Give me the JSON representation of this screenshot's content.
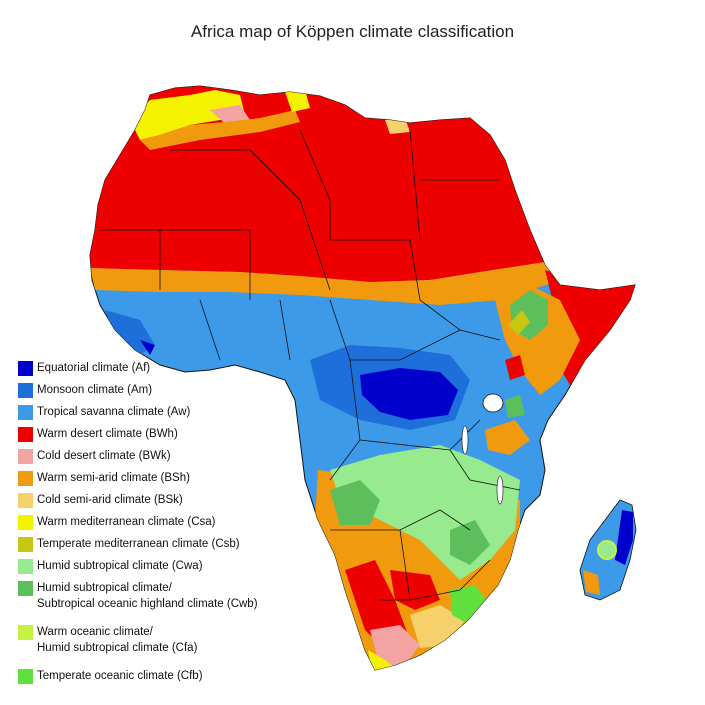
{
  "title": "Africa map of Köppen climate classification",
  "legend": [
    {
      "label": "Equatorial climate (Af)",
      "color": "#0000cd"
    },
    {
      "label": "Monsoon climate (Am)",
      "color": "#1f6fdb"
    },
    {
      "label": "Tropical savanna climate (Aw)",
      "color": "#3c9ae8"
    },
    {
      "label": "Warm desert climate (BWh)",
      "color": "#ee0000"
    },
    {
      "label": "Cold desert climate (BWk)",
      "color": "#f4a3a3"
    },
    {
      "label": "Warm semi-arid climate (BSh)",
      "color": "#f29a0e"
    },
    {
      "label": "Cold semi-arid climate (BSk)",
      "color": "#f6d06a"
    },
    {
      "label": "Warm mediterranean climate (Csa)",
      "color": "#f5f200"
    },
    {
      "label": "Temperate mediterranean climate (Csb)",
      "color": "#c7c712"
    },
    {
      "label": "Humid subtropical climate (Cwa)",
      "color": "#98ea8e"
    },
    {
      "label": "Humid subtropical climate/\nSubtropical oceanic highland climate (Cwb)",
      "color": "#5cbf5c"
    },
    {
      "label": "Warm oceanic climate/\nHumid subtropical climate (Cfa)",
      "color": "#c5f241"
    },
    {
      "label": "Temperate oceanic climate (Cfb)",
      "color": "#60e03c"
    }
  ]
}
